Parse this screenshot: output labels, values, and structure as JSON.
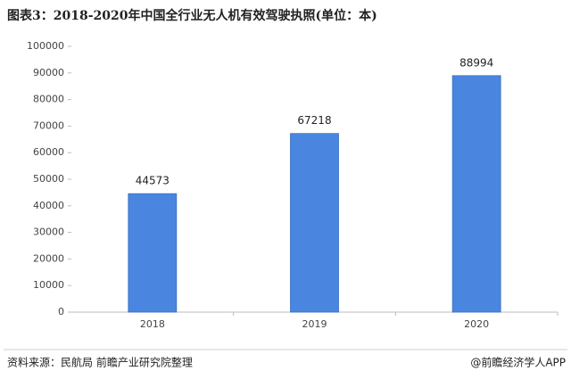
{
  "chart_data": {
    "type": "bar",
    "title": "图表3：2018-2020年中国全行业无人机有效驾驶执照(单位：本)",
    "categories": [
      "2018",
      "2019",
      "2020"
    ],
    "values": [
      44573,
      67218,
      88994
    ],
    "color": "#4a86e0",
    "ylim": [
      0,
      100000
    ],
    "yticks": [
      0,
      10000,
      20000,
      30000,
      40000,
      50000,
      60000,
      70000,
      80000,
      90000,
      100000
    ],
    "grid": false,
    "source": "资料来源：民航局 前瞻产业研究院整理",
    "credit": "@前瞻经济学人APP"
  }
}
